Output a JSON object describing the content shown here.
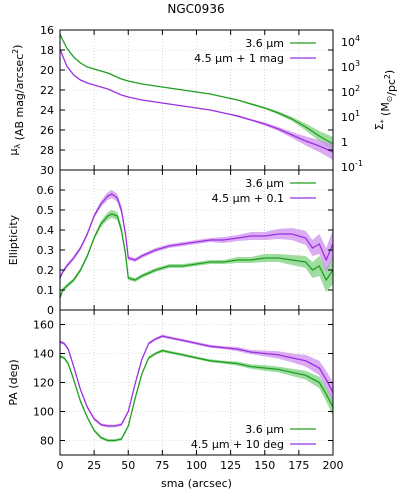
{
  "figure": {
    "title": "NGC0936"
  },
  "chart_data": [
    {
      "type": "line",
      "panel": "surface-brightness",
      "ylabel_parts": [
        "μ",
        "λ",
        " (AB mag/arcsec",
        "2",
        ")"
      ],
      "ylabel_right_parts": [
        "Σ",
        "*",
        " (M",
        "⊙",
        "/pc",
        "2",
        ")"
      ],
      "y_inverted": true,
      "ylim": [
        30,
        16
      ],
      "yticks": [
        16,
        18,
        20,
        22,
        24,
        26,
        28,
        30
      ],
      "right_axis": {
        "scale": "log",
        "ticks": [
          {
            "base": "10",
            "exp": "4",
            "mu": 17.2
          },
          {
            "base": "10",
            "exp": "3",
            "mu": 19.7
          },
          {
            "base": "10",
            "exp": "2",
            "mu": 22.2
          },
          {
            "base": "10",
            "exp": "1",
            "mu": 24.7
          },
          {
            "base": "1",
            "exp": "",
            "mu": 27.2
          },
          {
            "base": "10",
            "exp": "-1",
            "mu": 29.7
          }
        ]
      },
      "legend_position": "top-right",
      "series": [
        {
          "name": "3.6 μm",
          "color": "#1f9e1f",
          "band_color": "#7fd07f",
          "x": [
            0,
            2,
            5,
            10,
            15,
            20,
            25,
            30,
            35,
            40,
            45,
            50,
            60,
            70,
            80,
            90,
            100,
            110,
            120,
            130,
            140,
            150,
            160,
            170,
            180,
            190,
            200
          ],
          "y": [
            16.4,
            17.0,
            17.8,
            18.7,
            19.3,
            19.7,
            19.9,
            20.1,
            20.3,
            20.6,
            20.9,
            21.1,
            21.4,
            21.6,
            21.8,
            22.0,
            22.2,
            22.4,
            22.7,
            23.0,
            23.4,
            23.8,
            24.3,
            24.9,
            25.7,
            26.6,
            27.4
          ],
          "band": [
            0,
            0,
            0,
            0,
            0,
            0,
            0,
            0,
            0,
            0,
            0,
            0,
            0,
            0,
            0,
            0,
            0,
            0,
            0.05,
            0.05,
            0.1,
            0.1,
            0.15,
            0.2,
            0.35,
            0.5,
            0.7
          ]
        },
        {
          "name": "4.5 μm + 1 mag",
          "color": "#9b30e0",
          "band_color": "#cf8fef",
          "x": [
            0,
            2,
            5,
            10,
            15,
            20,
            25,
            30,
            35,
            40,
            45,
            50,
            60,
            70,
            80,
            90,
            100,
            110,
            120,
            130,
            140,
            150,
            160,
            170,
            180,
            190,
            200
          ],
          "y": [
            17.9,
            18.6,
            19.6,
            20.5,
            21.0,
            21.3,
            21.5,
            21.7,
            21.9,
            22.2,
            22.5,
            22.7,
            23.0,
            23.2,
            23.4,
            23.6,
            23.8,
            24.0,
            24.3,
            24.6,
            25.0,
            25.4,
            25.9,
            26.5,
            27.1,
            27.6,
            28.2
          ],
          "band": [
            0,
            0,
            0,
            0,
            0,
            0,
            0,
            0,
            0,
            0,
            0,
            0,
            0,
            0,
            0,
            0,
            0,
            0.05,
            0.05,
            0.1,
            0.1,
            0.15,
            0.2,
            0.3,
            0.45,
            0.6,
            0.8
          ]
        }
      ]
    },
    {
      "type": "line",
      "panel": "ellipticity",
      "ylabel": "Ellipticity",
      "ylim": [
        0,
        0.7
      ],
      "yticks": [
        0,
        0.1,
        0.2,
        0.3,
        0.4,
        0.5,
        0.6
      ],
      "ytick_labels": [
        "0",
        "0.1",
        "0.2",
        "0.3",
        "0.4",
        "0.5",
        "0.6"
      ],
      "legend_position": "top-right",
      "series": [
        {
          "name": "3.6 μm",
          "color": "#1f9e1f",
          "band_color": "#7fd07f",
          "x": [
            0,
            2,
            5,
            10,
            15,
            20,
            25,
            30,
            35,
            38,
            42,
            45,
            48,
            50,
            55,
            60,
            70,
            80,
            90,
            100,
            110,
            120,
            130,
            140,
            150,
            160,
            170,
            180,
            185,
            190,
            195,
            200
          ],
          "y": [
            0.06,
            0.1,
            0.12,
            0.15,
            0.2,
            0.27,
            0.36,
            0.43,
            0.47,
            0.48,
            0.47,
            0.4,
            0.28,
            0.16,
            0.15,
            0.17,
            0.2,
            0.22,
            0.22,
            0.23,
            0.24,
            0.24,
            0.25,
            0.25,
            0.26,
            0.26,
            0.25,
            0.24,
            0.2,
            0.22,
            0.15,
            0.2
          ],
          "band": [
            0.01,
            0.01,
            0.01,
            0.01,
            0.01,
            0.01,
            0.01,
            0.015,
            0.02,
            0.02,
            0.02,
            0.02,
            0.015,
            0.01,
            0.01,
            0.01,
            0.01,
            0.01,
            0.01,
            0.01,
            0.01,
            0.01,
            0.015,
            0.015,
            0.02,
            0.02,
            0.025,
            0.03,
            0.04,
            0.05,
            0.06,
            0.07
          ]
        },
        {
          "name": "4.5 μm + 0.1",
          "color": "#9b30e0",
          "band_color": "#cf8fef",
          "x": [
            0,
            2,
            5,
            10,
            15,
            20,
            25,
            30,
            35,
            38,
            42,
            45,
            48,
            50,
            55,
            60,
            70,
            80,
            90,
            100,
            110,
            120,
            130,
            140,
            150,
            160,
            170,
            180,
            185,
            190,
            195,
            200
          ],
          "y": [
            0.16,
            0.19,
            0.22,
            0.26,
            0.31,
            0.38,
            0.47,
            0.53,
            0.57,
            0.58,
            0.56,
            0.5,
            0.38,
            0.26,
            0.25,
            0.27,
            0.3,
            0.32,
            0.33,
            0.34,
            0.35,
            0.35,
            0.36,
            0.37,
            0.37,
            0.38,
            0.38,
            0.36,
            0.31,
            0.33,
            0.25,
            0.33
          ],
          "band": [
            0.01,
            0.01,
            0.01,
            0.01,
            0.01,
            0.01,
            0.01,
            0.015,
            0.02,
            0.02,
            0.02,
            0.02,
            0.015,
            0.01,
            0.01,
            0.01,
            0.01,
            0.01,
            0.01,
            0.01,
            0.01,
            0.015,
            0.015,
            0.02,
            0.02,
            0.025,
            0.03,
            0.035,
            0.04,
            0.05,
            0.06,
            0.07
          ]
        }
      ]
    },
    {
      "type": "line",
      "panel": "position-angle",
      "ylabel": "PA (deg)",
      "xlabel": "sma (arcsec)",
      "xlim": [
        0,
        200
      ],
      "xticks": [
        0,
        25,
        50,
        75,
        100,
        125,
        150,
        175,
        200
      ],
      "ylim": [
        70,
        170
      ],
      "yticks": [
        80,
        100,
        120,
        140,
        160
      ],
      "legend_position": "bottom-right",
      "series": [
        {
          "name": "3.6 μm",
          "color": "#1f9e1f",
          "band_color": "#7fd07f",
          "x": [
            0,
            3,
            6,
            10,
            15,
            20,
            25,
            30,
            35,
            40,
            45,
            50,
            55,
            60,
            65,
            70,
            75,
            80,
            90,
            100,
            110,
            120,
            130,
            140,
            150,
            160,
            170,
            180,
            190,
            195,
            200
          ],
          "y": [
            138,
            137,
            133,
            122,
            107,
            96,
            87,
            82,
            80,
            80,
            81,
            90,
            109,
            126,
            137,
            140,
            142,
            141,
            139,
            137,
            135,
            134,
            133,
            131,
            130,
            129,
            127,
            125,
            120,
            112,
            103
          ],
          "band": [
            1,
            1,
            1,
            1,
            1,
            1,
            1,
            1,
            1,
            1,
            1,
            1,
            1,
            1,
            1,
            1,
            1,
            1,
            1,
            1,
            1,
            1,
            1.5,
            1.5,
            2,
            2,
            2.5,
            3,
            4,
            5,
            6
          ]
        },
        {
          "name": "4.5 μm + 10 deg",
          "color": "#9b30e0",
          "band_color": "#cf8fef",
          "x": [
            0,
            3,
            6,
            10,
            15,
            20,
            25,
            30,
            35,
            40,
            45,
            50,
            55,
            60,
            65,
            70,
            75,
            80,
            90,
            100,
            110,
            120,
            130,
            140,
            150,
            160,
            170,
            180,
            190,
            195,
            200
          ],
          "y": [
            148,
            147,
            143,
            131,
            115,
            103,
            95,
            91,
            90,
            90,
            91,
            100,
            119,
            136,
            147,
            150,
            152,
            151,
            149,
            147,
            145,
            144,
            143,
            141,
            140,
            139,
            137,
            135,
            130,
            122,
            113
          ],
          "band": [
            1,
            1,
            1,
            1,
            1,
            1,
            1,
            1,
            1,
            1,
            1,
            1,
            1,
            1,
            1,
            1,
            1,
            1,
            1,
            1,
            1,
            1,
            1.5,
            1.5,
            2,
            2.5,
            3,
            4,
            5,
            6,
            7
          ]
        }
      ]
    }
  ]
}
